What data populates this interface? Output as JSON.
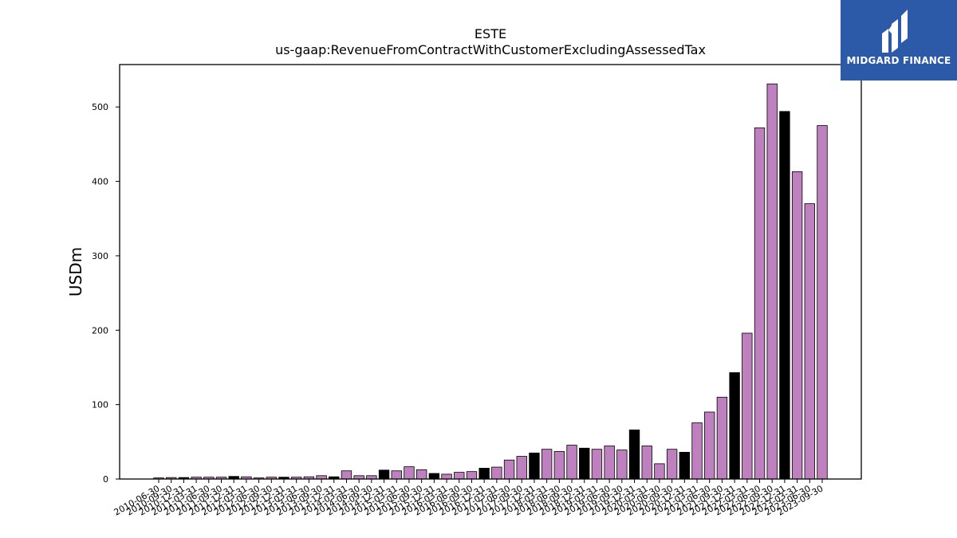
{
  "brand": {
    "name": "MIDGARD FINANCE",
    "logo_icon": "midgard-m-icon",
    "background": "#2d5aa8"
  },
  "chart_data": {
    "type": "bar",
    "title": "ESTE",
    "subtitle": "us-gaap:RevenueFromContractWithCustomerExcludingAssessedTax",
    "xlabel": "",
    "ylabel": "USDm",
    "ylim": [
      0,
      557
    ],
    "yticks": [
      0,
      100,
      200,
      300,
      400,
      500
    ],
    "grid": false,
    "colors": {
      "quarter": "#bf80bf",
      "fiscal_q4": "#000000",
      "edge": "#000000"
    },
    "categories": [
      "2010-06-30",
      "2010-09-30",
      "2010-12-31",
      "2011-03-31",
      "2011-06-30",
      "2011-09-30",
      "2011-12-31",
      "2012-03-31",
      "2012-06-30",
      "2012-09-30",
      "2012-12-31",
      "2013-03-31",
      "2013-06-30",
      "2013-09-30",
      "2013-12-31",
      "2014-03-31",
      "2014-06-30",
      "2014-09-30",
      "2014-12-31",
      "2015-03-31",
      "2015-06-30",
      "2015-09-30",
      "2015-12-31",
      "2016-03-31",
      "2016-06-30",
      "2016-09-30",
      "2016-12-31",
      "2017-03-31",
      "2017-06-30",
      "2017-09-30",
      "2017-12-31",
      "2018-03-31",
      "2018-06-30",
      "2018-09-30",
      "2018-12-31",
      "2019-03-31",
      "2019-06-30",
      "2019-09-30",
      "2019-12-31",
      "2020-03-31",
      "2020-06-30",
      "2020-09-30",
      "2020-12-31",
      "2021-03-31",
      "2021-06-30",
      "2021-09-30",
      "2021-12-31",
      "2022-03-31",
      "2022-06-30",
      "2022-09-30",
      "2022-12-31",
      "2023-03-31",
      "2023-06-30",
      "2023-09-30"
    ],
    "values": [
      1.5,
      2.0,
      2.0,
      2.5,
      2.5,
      2.5,
      3.5,
      3.0,
      1.5,
      2.5,
      2.5,
      2.5,
      3.0,
      4.5,
      3.0,
      11.0,
      4.5,
      4.5,
      12.0,
      11.0,
      16.5,
      12.5,
      7.5,
      6.5,
      9.0,
      10.0,
      14.5,
      16.0,
      25.5,
      30.5,
      35.0,
      40.0,
      37.0,
      45.5,
      41.5,
      40.0,
      44.5,
      39.0,
      66.0,
      44.5,
      20.5,
      40.0,
      36.0,
      75.5,
      90.0,
      110.0,
      143.0,
      196.0,
      472.0,
      531.0,
      494.0,
      413.0,
      370.0,
      475.0
    ],
    "highlight": [
      "2010-12-31",
      "2011-12-31",
      "2012-12-31",
      "2013-12-31",
      "2014-12-31",
      "2015-12-31",
      "2016-12-31",
      "2017-12-31",
      "2018-12-31",
      "2019-12-31",
      "2020-12-31",
      "2021-12-31",
      "2022-12-31"
    ]
  }
}
